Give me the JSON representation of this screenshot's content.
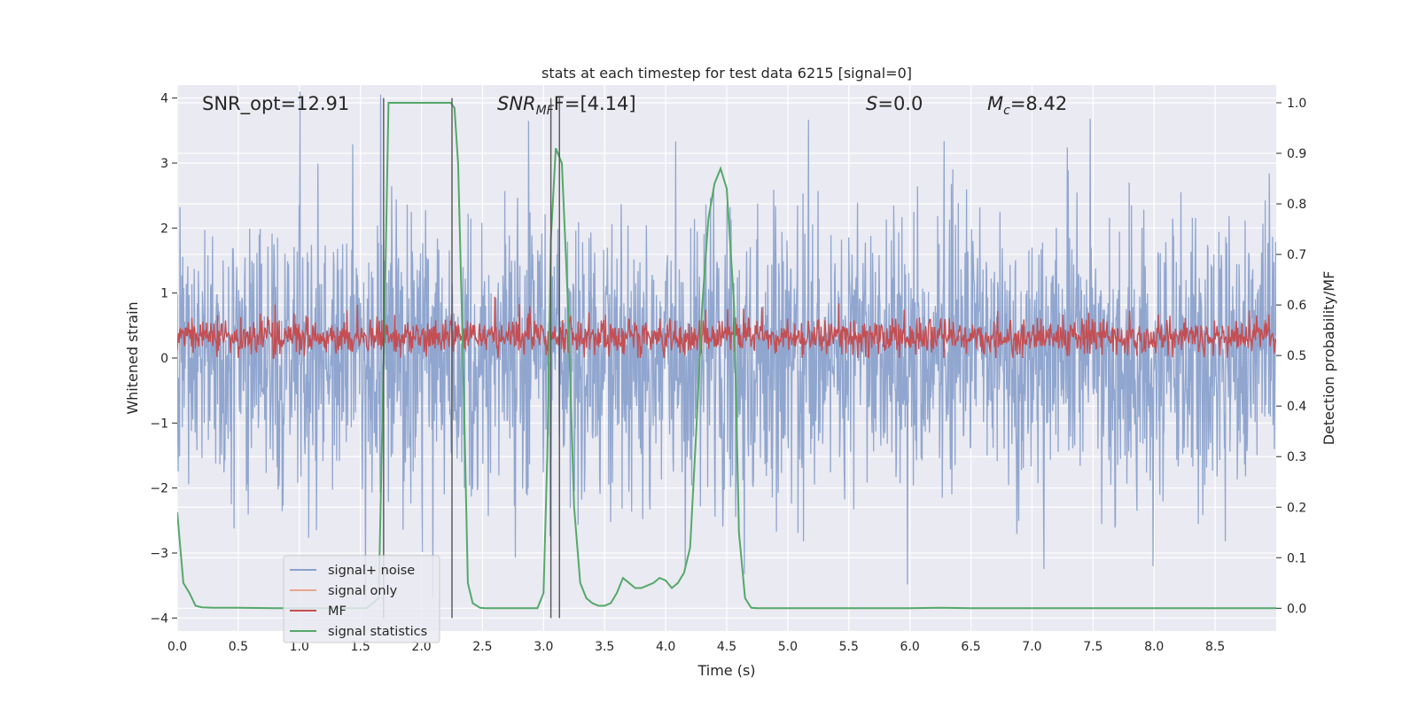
{
  "chart_data": {
    "type": "line",
    "title": "stats at each timestep for test data 6215 [signal=0]",
    "xlabel": "Time (s)",
    "ylabel": "Whitened strain",
    "ylabel_right": "Detection probability/MF",
    "xlim": [
      0,
      9
    ],
    "ylim": [
      -4.2,
      4.2
    ],
    "ylim_right": [
      -0.045,
      1.035
    ],
    "x_ticks": [
      "0.0",
      "0.5",
      "1.0",
      "1.5",
      "2.0",
      "2.5",
      "3.0",
      "3.5",
      "4.0",
      "4.5",
      "5.0",
      "5.5",
      "6.0",
      "6.5",
      "7.0",
      "7.5",
      "8.0",
      "8.5"
    ],
    "y_ticks": [
      "4",
      "3",
      "2",
      "1",
      "0",
      "−1",
      "−2",
      "−3",
      "−4"
    ],
    "y_ticks_right": [
      "1.0",
      "0.9",
      "0.8",
      "0.7",
      "0.6",
      "0.5",
      "0.4",
      "0.3",
      "0.2",
      "0.1",
      "0.0"
    ],
    "grid": true,
    "legend_position": "lower-left",
    "annotations": {
      "snr_opt": "SNR_opt=12.91",
      "snr_mf_main": "SNR",
      "snr_mf_sub": "MF",
      "snr_mf_value": "F=[4.14]",
      "s_main": "S",
      "s_value": "=0.0",
      "mc_main": "M",
      "mc_sub": "c",
      "mc_value": "=8.42"
    },
    "vertical_lines_x": [
      1.69,
      2.25,
      3.06,
      3.13
    ],
    "series": [
      {
        "name": "signal+ noise",
        "color": "#8ba2cc",
        "description_level": "noise band roughly between -2 and +2.3 with spikes to about ±4"
      },
      {
        "name": "signal only",
        "color": "#e8a58a",
        "values": []
      },
      {
        "name": "MF",
        "color": "#c44e52",
        "band": [
          0.0,
          0.7
        ]
      },
      {
        "name": "signal statistics",
        "color": "#55a868",
        "axis": "right",
        "x": [
          0.0,
          0.05,
          0.1,
          0.15,
          0.2,
          0.3,
          0.5,
          0.8,
          1.1,
          1.4,
          1.55,
          1.65,
          1.7,
          1.73,
          1.75,
          1.8,
          1.85,
          1.9,
          2.0,
          2.1,
          2.2,
          2.24,
          2.27,
          2.3,
          2.34,
          2.38,
          2.42,
          2.48,
          2.52,
          2.6,
          2.8,
          2.95,
          3.0,
          3.03,
          3.06,
          3.1,
          3.15,
          3.2,
          3.25,
          3.3,
          3.35,
          3.4,
          3.45,
          3.5,
          3.55,
          3.6,
          3.65,
          3.7,
          3.75,
          3.8,
          3.85,
          3.9,
          3.95,
          4.0,
          4.05,
          4.1,
          4.15,
          4.2,
          4.25,
          4.3,
          4.35,
          4.4,
          4.45,
          4.5,
          4.56,
          4.6,
          4.65,
          4.7,
          4.75,
          4.8,
          4.9,
          5.0,
          5.5,
          6.0,
          6.25,
          6.5,
          7.0,
          8.0,
          9.0
        ],
        "y": [
          0.19,
          0.05,
          0.03,
          0.005,
          0.002,
          0.001,
          0.001,
          0.0,
          0.0,
          0.0,
          0.0,
          0.02,
          0.6,
          1.0,
          1.0,
          1.0,
          1.0,
          1.0,
          1.0,
          1.0,
          1.0,
          1.0,
          0.99,
          0.88,
          0.5,
          0.05,
          0.01,
          0.001,
          0.0,
          0.0,
          0.0,
          0.0,
          0.03,
          0.3,
          0.73,
          0.91,
          0.88,
          0.6,
          0.2,
          0.05,
          0.02,
          0.01,
          0.005,
          0.005,
          0.01,
          0.03,
          0.06,
          0.05,
          0.04,
          0.04,
          0.045,
          0.05,
          0.06,
          0.055,
          0.04,
          0.05,
          0.07,
          0.12,
          0.35,
          0.6,
          0.77,
          0.84,
          0.87,
          0.83,
          0.6,
          0.15,
          0.02,
          0.001,
          0.0,
          0.0,
          0.0,
          0.0,
          0.0,
          0.0,
          0.001,
          0.0,
          0.0,
          0.0,
          0.0
        ]
      }
    ]
  }
}
